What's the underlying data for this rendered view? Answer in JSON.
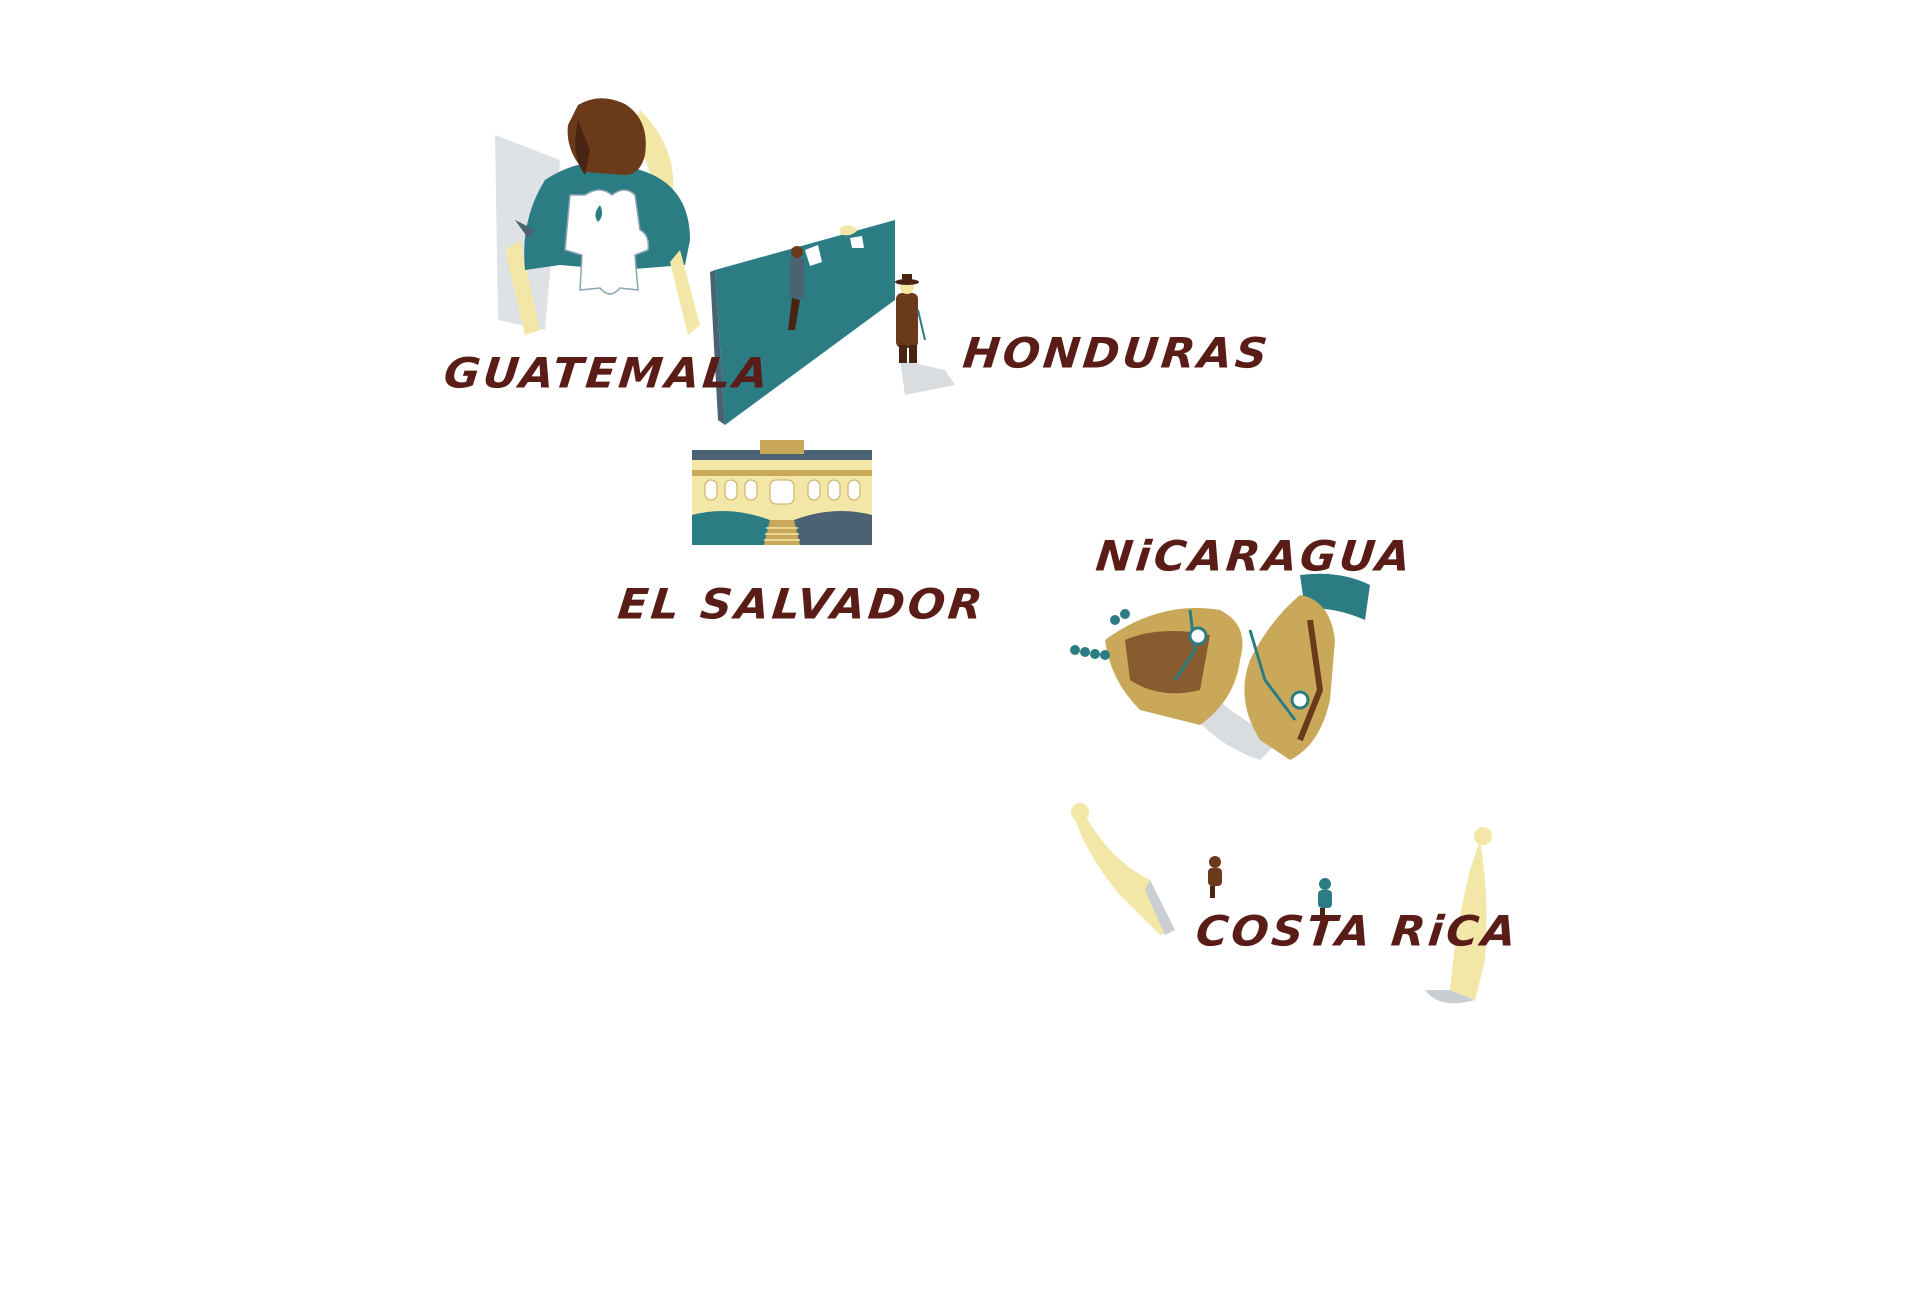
{
  "colors": {
    "label": "#5a1c17",
    "teal": "#2c7c84",
    "sand": "#f2e7a6",
    "brown": "#6b3a1a",
    "dark_brown": "#4a2412",
    "shadow": "#c9ced3",
    "slate": "#4b6273"
  },
  "icons": [
    "woman-with-puzzle-piece",
    "teal-wall-with-climber",
    "man-in-hat",
    "national-palace-building",
    "hands-with-rosary",
    "two-standing-figures",
    "small-walking-people"
  ],
  "countries": {
    "guatemala": "GUATEMALA",
    "honduras": "HONDURAS",
    "el_salvador": "EL SALVADOR",
    "nicaragua": "NiCARAGUA",
    "costa_rica": "COSTA RiCA"
  }
}
